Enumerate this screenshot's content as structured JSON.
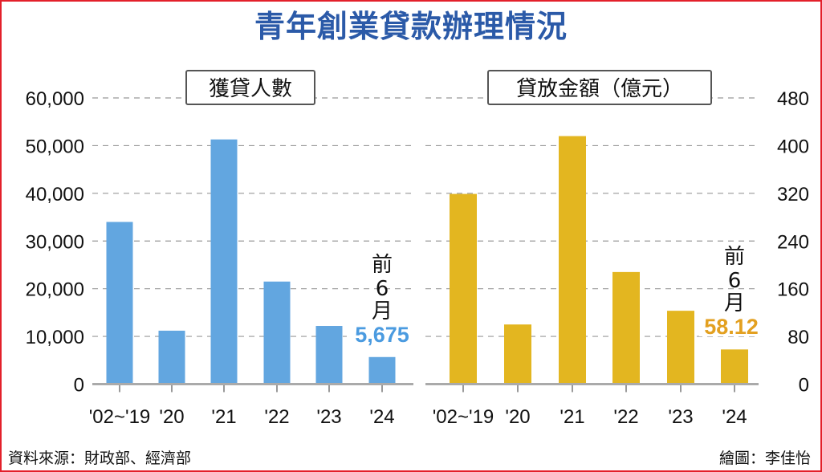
{
  "chart_data": [
    {
      "type": "bar",
      "title": "獲貸人數",
      "categories": [
        "'02~'19",
        "'20",
        "'21",
        "'22",
        "'23",
        "'24"
      ],
      "values": [
        34000,
        11200,
        51300,
        21500,
        12200,
        5675
      ],
      "ylim": [
        0,
        60000
      ],
      "yticks": [
        "0",
        "10,000",
        "20,000",
        "30,000",
        "40,000",
        "50,000",
        "60,000"
      ],
      "annotation": {
        "text": [
          "前",
          "6",
          "月"
        ],
        "value_label": "5,675"
      },
      "grid": true,
      "color": "#62a6e0",
      "label_color": "#4b9be0"
    },
    {
      "type": "bar",
      "title": "貸放金額（億元）",
      "categories": [
        "'02~'19",
        "'20",
        "'21",
        "'22",
        "'23",
        "'24"
      ],
      "values": [
        319,
        100,
        416,
        188,
        123,
        58.12
      ],
      "ylim": [
        0,
        480
      ],
      "yticks": [
        "0",
        "80",
        "160",
        "240",
        "320",
        "400",
        "480"
      ],
      "annotation": {
        "text": [
          "前",
          "6",
          "月"
        ],
        "value_label": "58.12"
      },
      "grid": true,
      "color": "#e3b620",
      "label_color": "#e3a020"
    }
  ],
  "title": "青年創業貸款辦理情況",
  "source": "資料來源：財政部、經濟部",
  "credit": "繪圖：李佳怡"
}
